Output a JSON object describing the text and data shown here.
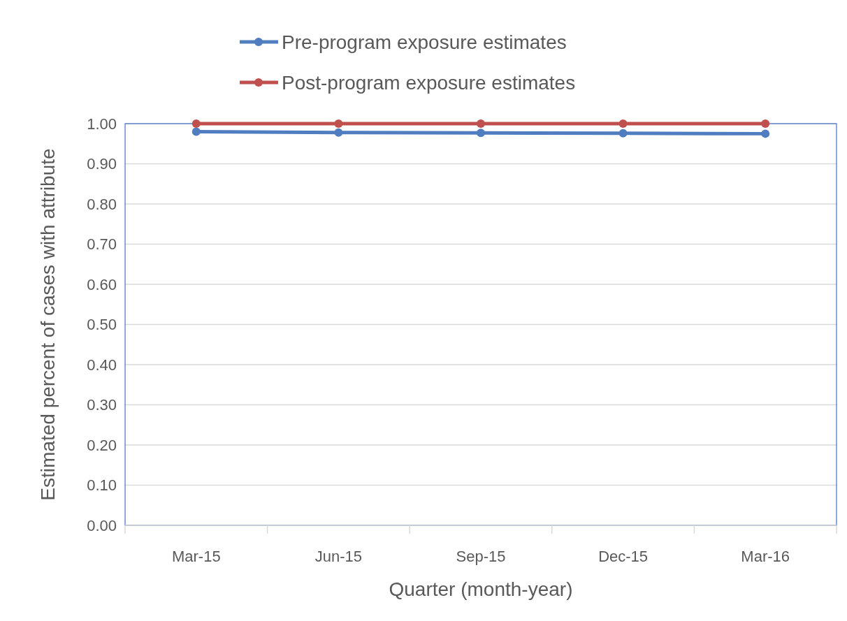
{
  "chart_data": {
    "type": "line",
    "xlabel": "Quarter (month-year)",
    "ylabel": "Estimated percent of cases with attribute",
    "categories": [
      "Mar-15",
      "Jun-15",
      "Sep-15",
      "Dec-15",
      "Mar-16"
    ],
    "series": [
      {
        "name": "Pre-program exposure estimates",
        "color": "#4f7dc0",
        "values": [
          0.98,
          0.978,
          0.977,
          0.976,
          0.975
        ]
      },
      {
        "name": "Post-program exposure estimates",
        "color": "#c0504d",
        "values": [
          1.0,
          1.0,
          1.0,
          1.0,
          1.0
        ]
      }
    ],
    "ylim": [
      0,
      1
    ],
    "yticks": [
      {
        "value": 0,
        "label": "0.00"
      },
      {
        "value": 0.1,
        "label": "0.10"
      },
      {
        "value": 0.2,
        "label": "0.20"
      },
      {
        "value": 0.3,
        "label": "0.30"
      },
      {
        "value": 0.4,
        "label": "0.40"
      },
      {
        "value": 0.5,
        "label": "0.50"
      },
      {
        "value": 0.6,
        "label": "0.60"
      },
      {
        "value": 0.7,
        "label": "0.70"
      },
      {
        "value": 0.8,
        "label": "0.80"
      },
      {
        "value": 0.9,
        "label": "0.90"
      },
      {
        "value": 1,
        "label": "1.00"
      }
    ],
    "grid": "y",
    "legend": "top",
    "marker": "circle",
    "line_style": "solid"
  }
}
